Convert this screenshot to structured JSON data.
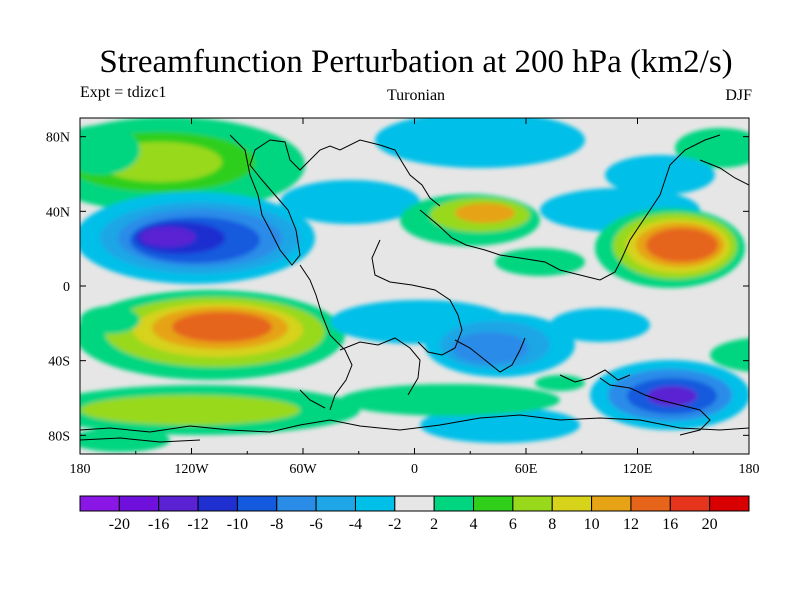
{
  "title": "Streamfunction Perturbation at 200 hPa (km2/s)",
  "subtitle_left": "Expt = tdizc1",
  "subtitle_center": "Turonian",
  "subtitle_right": "DJF",
  "map": {
    "lon_range": [
      -180,
      180
    ],
    "lat_range": [
      -90,
      90
    ],
    "background_color": "#e6e6e6",
    "x_ticks": [
      "180",
      "120W",
      "60W",
      "0",
      "60E",
      "120E",
      "180"
    ],
    "y_ticks": [
      "80N",
      "40N",
      "0",
      "40S",
      "80S"
    ]
  },
  "colorbar": {
    "labels": [
      "-20",
      "-16",
      "-12",
      "-10",
      "-8",
      "-6",
      "-4",
      "-2",
      "2",
      "4",
      "6",
      "8",
      "10",
      "12",
      "16",
      "20"
    ],
    "colors": [
      "#8a17e6",
      "#6f10dc",
      "#5a22d2",
      "#1f2fd0",
      "#145ade",
      "#2b8ce8",
      "#1ea6e6",
      "#00bfe8",
      "#e6e6e6",
      "#00d580",
      "#2fcf1c",
      "#98d91c",
      "#d7d21a",
      "#e6a315",
      "#e6651b",
      "#e6351c",
      "#d80000"
    ]
  }
}
